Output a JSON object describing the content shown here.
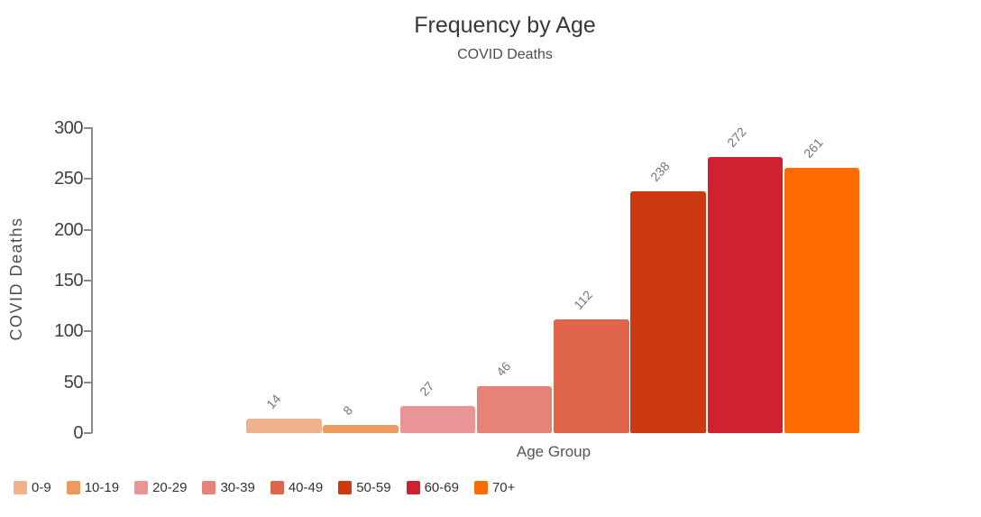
{
  "chart_data": {
    "type": "bar",
    "title": "Frequency by Age",
    "subtitle": "COVID Deaths",
    "xlabel": "Age Group",
    "ylabel": "COVID Deaths",
    "categories": [
      "0-9",
      "10-19",
      "20-29",
      "30-39",
      "40-49",
      "50-59",
      "60-69",
      "70+"
    ],
    "values": [
      14,
      8,
      27,
      46,
      112,
      238,
      272,
      261
    ],
    "colors": [
      "#eeb28d",
      "#ec9a60",
      "#e99495",
      "#e58377",
      "#e0664b",
      "#cc3a12",
      "#cf2130",
      "#fe6c01"
    ],
    "ylim": [
      0,
      300
    ],
    "yticks": [
      0,
      50,
      100,
      150,
      200,
      250,
      300
    ],
    "grid": false,
    "legend_position": "bottom-left",
    "value_label_color": "#767676",
    "axis_color": "#8a8a8a",
    "tick_label_color": "#414141",
    "title_color": "#383838",
    "background_color": "#ffffff"
  }
}
